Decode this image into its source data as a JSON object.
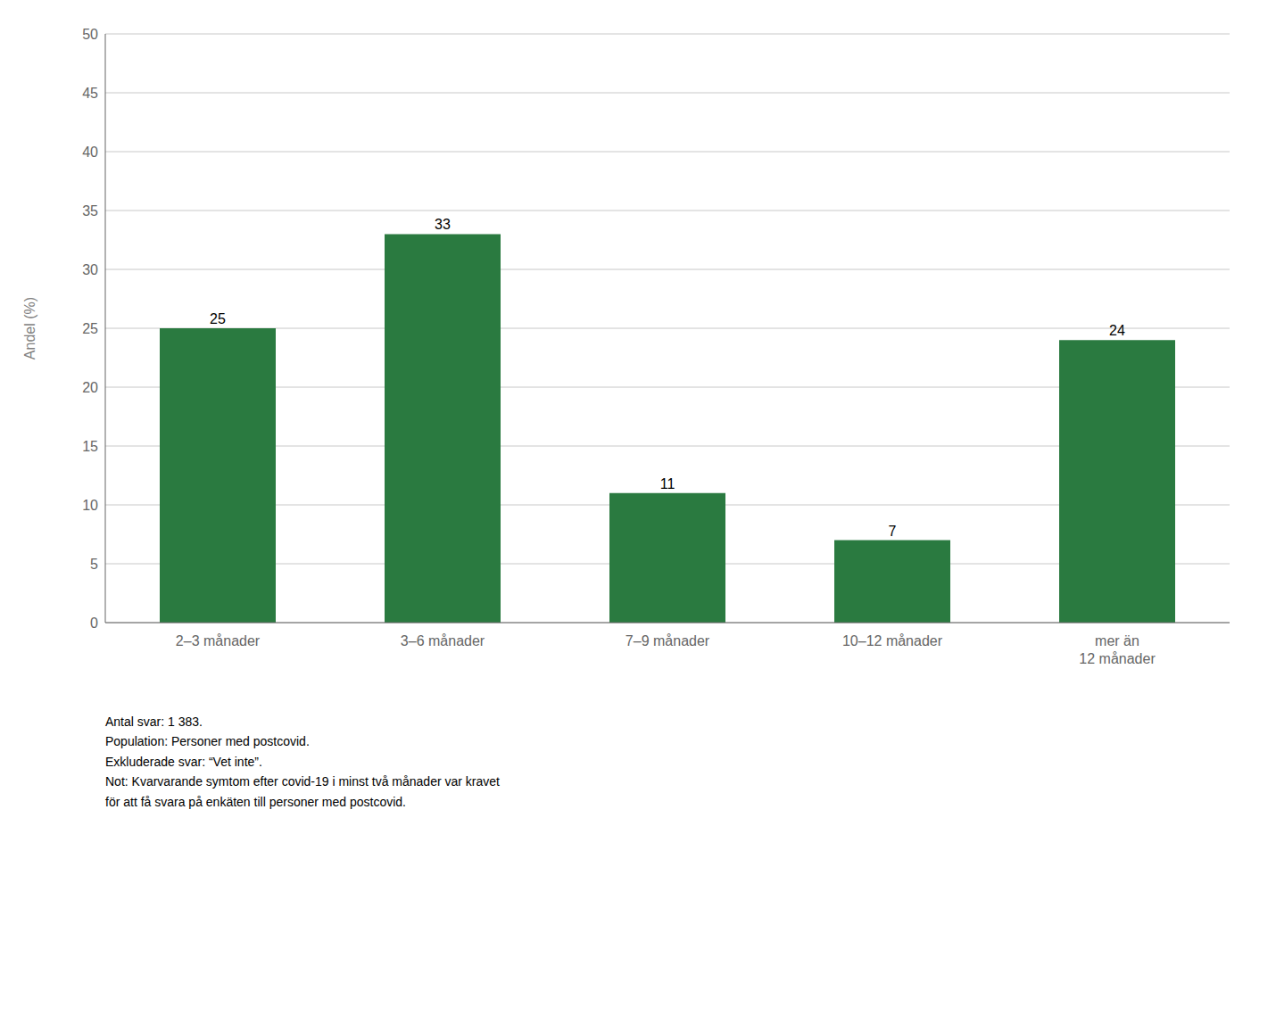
{
  "chart_data": {
    "type": "bar",
    "categories": [
      "2–3 månader",
      "3–6 månader",
      "7–9 månader",
      "10–12 månader",
      "mer än\n12 månader"
    ],
    "values": [
      25,
      33,
      11,
      7,
      24
    ],
    "color": "#2a7a40",
    "ylabel": "Andel (%)",
    "ylim": [
      0,
      50
    ],
    "yticks": [
      0,
      5,
      10,
      15,
      20,
      25,
      30,
      35,
      40,
      45,
      50
    ],
    "grid": true,
    "data_labels": true,
    "annotations": [
      "Antal svar: 1 383.",
      "Population: Personer med postcovid.",
      "Exkluderade svar: “Vet inte”.",
      "Not: Kvarvarande symtom efter covid-19 i minst två månader var kravet",
      "för att få svara på enkäten till personer med postcovid."
    ]
  }
}
